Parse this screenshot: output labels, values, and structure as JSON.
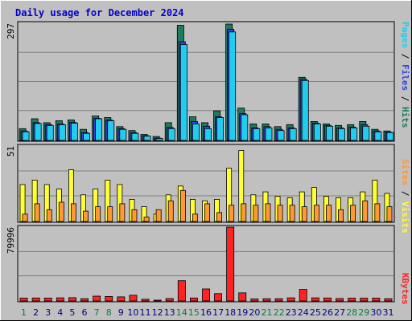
{
  "chart_data": {
    "type": "bar",
    "title": "Daily usage for December 2024",
    "title_color": "#0000cc",
    "days": [
      1,
      2,
      3,
      4,
      5,
      6,
      7,
      8,
      9,
      10,
      11,
      12,
      13,
      14,
      15,
      16,
      17,
      18,
      19,
      20,
      21,
      22,
      23,
      24,
      25,
      26,
      27,
      28,
      29,
      30,
      31
    ],
    "weekend_days": [
      1,
      7,
      8,
      14,
      15,
      21,
      22,
      28,
      29
    ],
    "panels": [
      {
        "id": "hits-panel",
        "max_label": "297",
        "ymax": 297,
        "series": [
          {
            "name": "Hits",
            "color": "#1f7a5c",
            "values": [
              30,
              55,
              45,
              50,
              52,
              28,
              62,
              58,
              35,
              25,
              15,
              10,
              45,
              292,
              60,
              45,
              75,
              295,
              82,
              42,
              42,
              35,
              40,
              160,
              48,
              42,
              38,
              40,
              48,
              28,
              24
            ]
          },
          {
            "name": "Files",
            "color": "#3344dd",
            "values": [
              24,
              45,
              40,
              42,
              46,
              20,
              56,
              52,
              30,
              20,
              12,
              6,
              33,
              250,
              48,
              36,
              60,
              282,
              68,
              32,
              35,
              28,
              32,
              155,
              44,
              38,
              32,
              34,
              40,
              24,
              21
            ]
          },
          {
            "name": "Pages",
            "color": "#22ccee",
            "values": [
              22,
              43,
              38,
              40,
              44,
              18,
              55,
              50,
              28,
              18,
              11,
              5,
              30,
              243,
              42,
              30,
              58,
              275,
              65,
              30,
              32,
              25,
              30,
              152,
              42,
              36,
              30,
              32,
              36,
              22,
              20
            ]
          }
        ]
      },
      {
        "id": "visits-panel",
        "max_label": "51",
        "ymax": 51,
        "series": [
          {
            "name": "Visits",
            "color": "#ffff33",
            "values": [
              25,
              28,
              25,
              22,
              35,
              18,
              22,
              28,
              25,
              15,
              10,
              5,
              18,
              24,
              15,
              14,
              15,
              36,
              48,
              18,
              20,
              17,
              16,
              20,
              23,
              17,
              16,
              16,
              20,
              28,
              19
            ]
          },
          {
            "name": "Sites",
            "color": "#ff9933",
            "values": [
              5,
              12,
              8,
              13,
              12,
              7,
              10,
              10,
              12,
              8,
              3,
              8,
              14,
              21,
              5,
              12,
              6,
              11,
              12,
              11,
              12,
              11,
              11,
              10,
              11,
              11,
              8,
              11,
              14,
              12,
              10
            ]
          }
        ]
      },
      {
        "id": "kbytes-panel",
        "max_label": "79996",
        "ymax": 79996,
        "series": [
          {
            "name": "KBytes",
            "color": "#ff2222",
            "values": [
              3000,
              3200,
              3100,
              3400,
              3600,
              2400,
              5200,
              4900,
              4400,
              6200,
              1800,
              800,
              2600,
              22000,
              3200,
              13000,
              8000,
              79996,
              8800,
              2200,
              2400,
              2400,
              3400,
              12600,
              3400,
              3200,
              2600,
              3000,
              3000,
              3000,
              2400
            ]
          }
        ]
      }
    ],
    "legend_right": [
      {
        "panel": "hits-panel",
        "items": [
          {
            "text": "Pages",
            "color": "#22ccee"
          },
          {
            "text": " / ",
            "color": "#000000"
          },
          {
            "text": "Files",
            "color": "#3344dd"
          },
          {
            "text": " / ",
            "color": "#000000"
          },
          {
            "text": "Hits",
            "color": "#1f7a5c"
          }
        ]
      },
      {
        "panel": "visits-panel",
        "items": [
          {
            "text": "Sites",
            "color": "#ff9933"
          },
          {
            "text": " / ",
            "color": "#000000"
          },
          {
            "text": "Visits",
            "color": "#ffff33"
          }
        ]
      },
      {
        "panel": "kbytes-panel",
        "items": [
          {
            "text": "KBytes",
            "color": "#ff2222"
          }
        ]
      }
    ],
    "grid": true,
    "day_label_color": "#000080",
    "weekend_label_color": "#008040"
  }
}
